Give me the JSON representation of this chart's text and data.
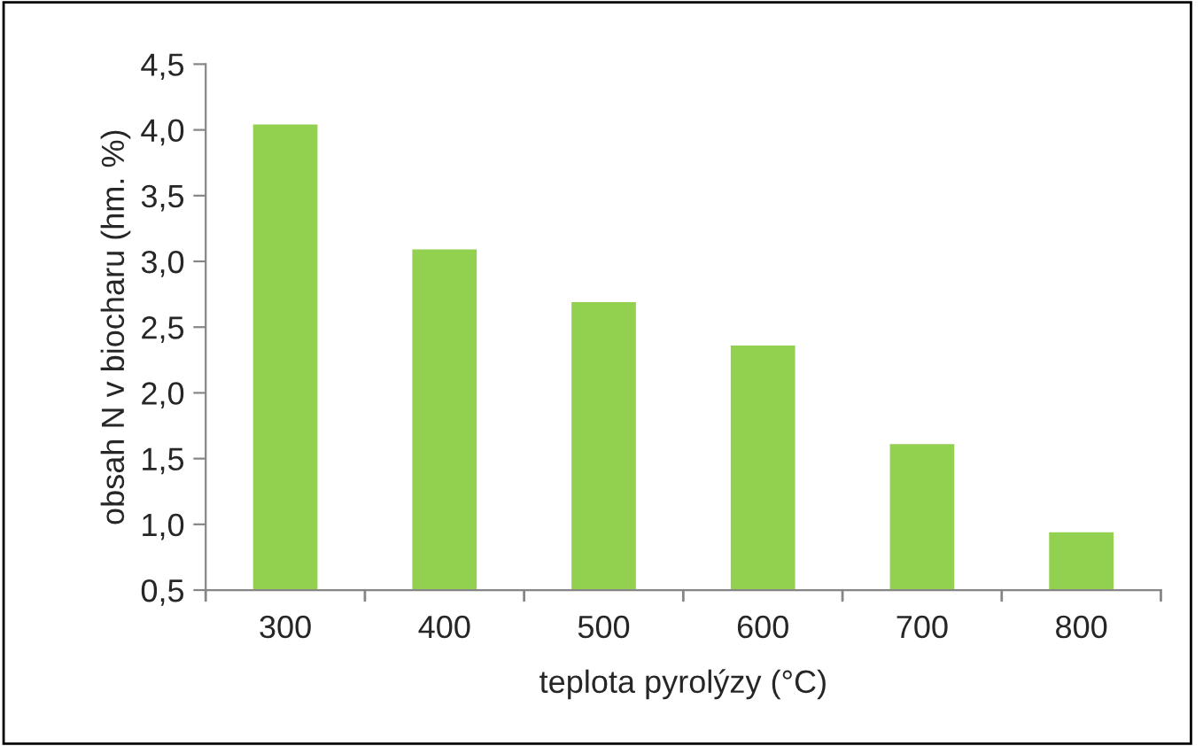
{
  "chart_data": {
    "type": "bar",
    "xlabel": "teplota pyrolýzy (°C)",
    "ylabel": "obsah N v biocharu (hm. %)",
    "categories": [
      "300",
      "400",
      "500",
      "600",
      "700",
      "800"
    ],
    "values": [
      4.05,
      3.1,
      2.7,
      2.37,
      1.62,
      0.95
    ],
    "color": "#92d050",
    "ylim": [
      0.5,
      4.5
    ],
    "yticks": [
      {
        "value": 0.5,
        "label": "0,5"
      },
      {
        "value": 1.0,
        "label": "1,0"
      },
      {
        "value": 1.5,
        "label": "1,5"
      },
      {
        "value": 2.0,
        "label": "2,0"
      },
      {
        "value": 2.5,
        "label": "2,5"
      },
      {
        "value": 3.0,
        "label": "3,0"
      },
      {
        "value": 3.5,
        "label": "3,5"
      },
      {
        "value": 4.0,
        "label": "4,0"
      },
      {
        "value": 4.5,
        "label": "4,5"
      }
    ],
    "grid": false
  }
}
